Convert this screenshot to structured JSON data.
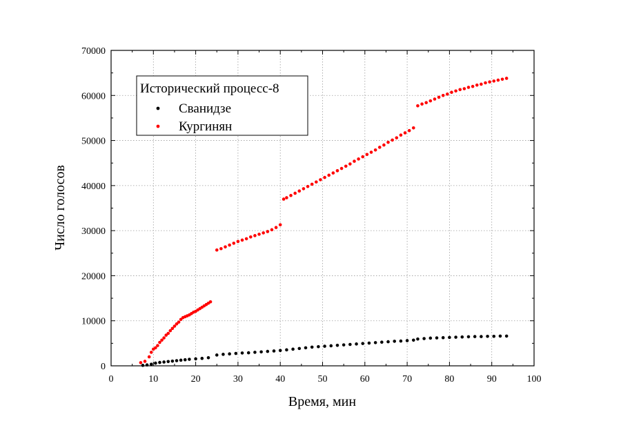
{
  "chart_data": {
    "type": "scatter",
    "title": "",
    "xlabel": "Время, мин",
    "ylabel": "Число голосов",
    "xlim": [
      0,
      100
    ],
    "ylim": [
      0,
      70000
    ],
    "xticks": [
      0,
      10,
      20,
      30,
      40,
      50,
      60,
      70,
      80,
      90,
      100
    ],
    "yticks": [
      0,
      10000,
      20000,
      30000,
      40000,
      50000,
      60000,
      70000
    ],
    "grid": true,
    "legend": {
      "title": "Исторический процесс-8",
      "placement": "top-left"
    },
    "series": [
      {
        "name": "Сванидзе",
        "color": "#000000",
        "points": [
          [
            7.5,
            100
          ],
          [
            8.5,
            200
          ],
          [
            9.5,
            350
          ],
          [
            10.5,
            600
          ],
          [
            11.5,
            750
          ],
          [
            12.5,
            850
          ],
          [
            13.5,
            950
          ],
          [
            14.5,
            1050
          ],
          [
            15.5,
            1150
          ],
          [
            16.5,
            1250
          ],
          [
            17.5,
            1350
          ],
          [
            18.5,
            1450
          ],
          [
            20,
            1550
          ],
          [
            21.5,
            1650
          ],
          [
            23,
            1800
          ],
          [
            25,
            2400
          ],
          [
            26.5,
            2550
          ],
          [
            28,
            2650
          ],
          [
            29.5,
            2750
          ],
          [
            31,
            2850
          ],
          [
            32.5,
            2900
          ],
          [
            34,
            3000
          ],
          [
            35.5,
            3100
          ],
          [
            37,
            3200
          ],
          [
            38.5,
            3300
          ],
          [
            40,
            3400
          ],
          [
            41.5,
            3550
          ],
          [
            43,
            3700
          ],
          [
            44.5,
            3850
          ],
          [
            46,
            4000
          ],
          [
            47.5,
            4150
          ],
          [
            49,
            4250
          ],
          [
            50.5,
            4350
          ],
          [
            52,
            4450
          ],
          [
            53.5,
            4550
          ],
          [
            55,
            4650
          ],
          [
            56.5,
            4750
          ],
          [
            58,
            4850
          ],
          [
            59.5,
            4950
          ],
          [
            61,
            5050
          ],
          [
            62.5,
            5150
          ],
          [
            64,
            5250
          ],
          [
            65.5,
            5350
          ],
          [
            67,
            5450
          ],
          [
            68.5,
            5500
          ],
          [
            70,
            5600
          ],
          [
            71.5,
            5700
          ],
          [
            72.5,
            5950
          ],
          [
            74,
            6050
          ],
          [
            75.5,
            6150
          ],
          [
            77,
            6200
          ],
          [
            78.5,
            6250
          ],
          [
            80,
            6300
          ],
          [
            81.5,
            6350
          ],
          [
            83,
            6400
          ],
          [
            84.5,
            6450
          ],
          [
            86,
            6500
          ],
          [
            87.5,
            6500
          ],
          [
            89,
            6550
          ],
          [
            90.5,
            6550
          ],
          [
            92,
            6600
          ],
          [
            93.5,
            6600
          ]
        ]
      },
      {
        "name": "Кургинян",
        "color": "#ff0000",
        "points": [
          [
            7,
            700
          ],
          [
            8,
            1000
          ],
          [
            9,
            2000
          ],
          [
            9.5,
            3000
          ],
          [
            10,
            3700
          ],
          [
            10.5,
            4000
          ],
          [
            11,
            4500
          ],
          [
            11.5,
            5200
          ],
          [
            12,
            5700
          ],
          [
            12.5,
            6200
          ],
          [
            13,
            6800
          ],
          [
            13.5,
            7200
          ],
          [
            14,
            7800
          ],
          [
            14.5,
            8300
          ],
          [
            15,
            8800
          ],
          [
            15.5,
            9300
          ],
          [
            16,
            9700
          ],
          [
            16.5,
            10300
          ],
          [
            17,
            10700
          ],
          [
            17.5,
            10900
          ],
          [
            18,
            11100
          ],
          [
            18.5,
            11300
          ],
          [
            19,
            11600
          ],
          [
            19.5,
            11900
          ],
          [
            20,
            12100
          ],
          [
            20.5,
            12400
          ],
          [
            21,
            12700
          ],
          [
            21.5,
            13000
          ],
          [
            22,
            13300
          ],
          [
            22.5,
            13600
          ],
          [
            23,
            13900
          ],
          [
            23.5,
            14200
          ],
          [
            25,
            25700
          ],
          [
            26,
            26000
          ],
          [
            27,
            26400
          ],
          [
            28,
            26800
          ],
          [
            29,
            27200
          ],
          [
            30,
            27600
          ],
          [
            31,
            27900
          ],
          [
            32,
            28200
          ],
          [
            33,
            28600
          ],
          [
            34,
            28900
          ],
          [
            35,
            29200
          ],
          [
            36,
            29500
          ],
          [
            37,
            29800
          ],
          [
            38,
            30200
          ],
          [
            39,
            30700
          ],
          [
            40,
            31300
          ],
          [
            40.8,
            37000
          ],
          [
            41.5,
            37300
          ],
          [
            42.5,
            37800
          ],
          [
            43.5,
            38300
          ],
          [
            44.5,
            38800
          ],
          [
            45.5,
            39300
          ],
          [
            46.5,
            39800
          ],
          [
            47.5,
            40300
          ],
          [
            48.5,
            40800
          ],
          [
            49.5,
            41300
          ],
          [
            50.5,
            41800
          ],
          [
            51.5,
            42300
          ],
          [
            52.5,
            42800
          ],
          [
            53.5,
            43300
          ],
          [
            54.5,
            43800
          ],
          [
            55.5,
            44300
          ],
          [
            56.5,
            44800
          ],
          [
            57.5,
            45400
          ],
          [
            58.5,
            45900
          ],
          [
            59.5,
            46400
          ],
          [
            60.5,
            46900
          ],
          [
            61.5,
            47400
          ],
          [
            62.5,
            47900
          ],
          [
            63.5,
            48500
          ],
          [
            64.5,
            49000
          ],
          [
            65.5,
            49600
          ],
          [
            66.5,
            50100
          ],
          [
            67.5,
            50600
          ],
          [
            68.5,
            51200
          ],
          [
            69.5,
            51700
          ],
          [
            70.5,
            52200
          ],
          [
            71.5,
            52800
          ],
          [
            72.5,
            57700
          ],
          [
            73.5,
            58100
          ],
          [
            74.5,
            58400
          ],
          [
            75.5,
            58800
          ],
          [
            76.5,
            59200
          ],
          [
            77.5,
            59600
          ],
          [
            78.5,
            60000
          ],
          [
            79.5,
            60300
          ],
          [
            80.5,
            60700
          ],
          [
            81.5,
            61000
          ],
          [
            82.5,
            61300
          ],
          [
            83.5,
            61500
          ],
          [
            84.5,
            61800
          ],
          [
            85.5,
            62000
          ],
          [
            86.5,
            62300
          ],
          [
            87.5,
            62500
          ],
          [
            88.5,
            62800
          ],
          [
            89.5,
            63000
          ],
          [
            90.5,
            63200
          ],
          [
            91.5,
            63400
          ],
          [
            92.5,
            63600
          ],
          [
            93.5,
            63800
          ]
        ]
      }
    ]
  }
}
